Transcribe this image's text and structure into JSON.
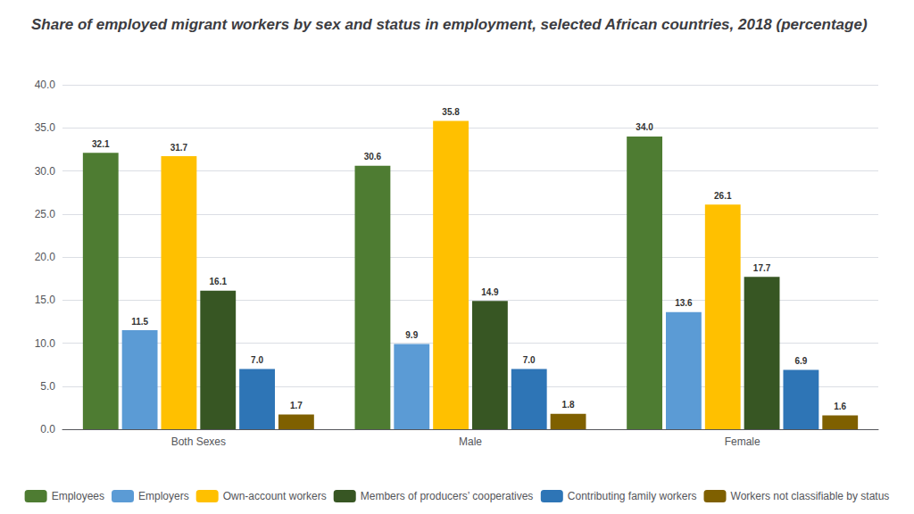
{
  "chart_data": {
    "type": "bar",
    "title": "Share of employed migrant workers by sex and status in employment, selected African countries, 2018 (percentage)",
    "categories": [
      "Both Sexes",
      "Male",
      "Female"
    ],
    "series": [
      {
        "name": "Employees",
        "color": "#4e7c32",
        "values": [
          32.1,
          30.6,
          34.0
        ],
        "value_labels": [
          "32.1",
          "30.6",
          "34.0"
        ]
      },
      {
        "name": "Employers",
        "color": "#5b9bd5",
        "values": [
          11.5,
          9.9,
          13.6
        ],
        "value_labels": [
          "11.5",
          "9.9",
          "13.6"
        ]
      },
      {
        "name": "Own-account workers",
        "color": "#ffc000",
        "values": [
          31.7,
          35.8,
          26.1
        ],
        "value_labels": [
          "31.7",
          "35.8",
          "26.1"
        ]
      },
      {
        "name": "Members of producers’ cooperatives",
        "color": "#375623",
        "values": [
          16.1,
          14.9,
          17.7
        ],
        "value_labels": [
          "16.1",
          "14.9",
          "17.7"
        ]
      },
      {
        "name": "Contributing family workers",
        "color": "#2e75b6",
        "values": [
          7.0,
          7.0,
          6.9
        ],
        "value_labels": [
          "7.0",
          "7.0",
          "6.9"
        ]
      },
      {
        "name": "Workers not classifiable by status",
        "color": "#7f6000",
        "values": [
          1.7,
          1.8,
          1.6
        ],
        "value_labels": [
          "1.7",
          "1.8",
          "1.6"
        ]
      }
    ],
    "ylim": [
      0,
      40
    ],
    "yticks": [
      {
        "value": 0,
        "label": "0.0"
      },
      {
        "value": 5,
        "label": "5.0"
      },
      {
        "value": 10,
        "label": "10.0"
      },
      {
        "value": 15,
        "label": "15.0"
      },
      {
        "value": 20,
        "label": "20.0"
      },
      {
        "value": 25,
        "label": "25.0"
      },
      {
        "value": 30,
        "label": "30.0"
      },
      {
        "value": 35,
        "label": "35.0"
      },
      {
        "value": 40,
        "label": "40.0"
      }
    ],
    "grid": true,
    "legend": "bottom",
    "data_labels": true
  }
}
